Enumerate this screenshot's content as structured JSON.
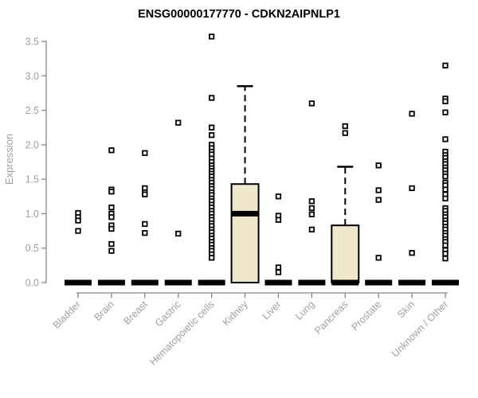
{
  "chart_data": {
    "type": "boxplot",
    "title": "ENSG00000177770 - CDKN2AIPNLP1",
    "ylabel": "Expression",
    "xlabel": "",
    "ylim": [
      0,
      3.5
    ],
    "ytick_labels": [
      "0.0",
      "0.5",
      "1.0",
      "1.5",
      "2.0",
      "2.5",
      "3.0",
      "3.5"
    ],
    "grid": false,
    "legend": "none",
    "categories": [
      "Bladder",
      "Brain",
      "Breast",
      "Gastric",
      "Hematopoietic cells",
      "Kidney",
      "Liver",
      "Lung",
      "Pancreas",
      "Prostate",
      "Skin",
      "Unknown / Other"
    ],
    "boxes": [
      {
        "category": "Bladder",
        "q1": 0,
        "median": 0,
        "q3": 0,
        "whisker_low": 0,
        "whisker_high": 0,
        "outliers": [
          1.01,
          0.95,
          0.9,
          0.75
        ]
      },
      {
        "category": "Brain",
        "q1": 0,
        "median": 0,
        "q3": 0,
        "whisker_low": 0,
        "whisker_high": 0,
        "outliers": [
          1.92,
          1.35,
          1.32,
          1.09,
          1.0,
          0.95,
          0.83,
          0.78,
          0.56,
          0.46
        ]
      },
      {
        "category": "Breast",
        "q1": 0,
        "median": 0,
        "q3": 0,
        "whisker_low": 0,
        "whisker_high": 0,
        "outliers": [
          1.88,
          1.37,
          1.31,
          1.28,
          0.85,
          0.72
        ]
      },
      {
        "category": "Gastric",
        "q1": 0,
        "median": 0,
        "q3": 0,
        "whisker_low": 0,
        "whisker_high": 0,
        "outliers": [
          2.32,
          0.71
        ]
      },
      {
        "category": "Hematopoietic cells",
        "q1": 0,
        "median": 0,
        "q3": 0,
        "whisker_low": 0,
        "whisker_high": 0,
        "outliers": [
          3.57,
          2.68,
          2.25,
          2.14,
          2.0,
          1.95,
          1.9,
          1.86,
          1.8,
          1.75,
          1.7,
          1.66,
          1.62,
          1.58,
          1.54,
          1.49,
          1.45,
          1.4,
          1.36,
          1.31,
          1.27,
          1.22,
          1.18,
          1.13,
          1.09,
          1.04,
          1.0,
          0.95,
          0.91,
          0.86,
          0.82,
          0.77,
          0.73,
          0.68,
          0.64,
          0.59,
          0.55,
          0.5,
          0.46,
          0.41,
          0.36
        ]
      },
      {
        "category": "Kidney",
        "q1": 0,
        "median": 1.0,
        "q3": 1.43,
        "whisker_low": 0,
        "whisker_high": 2.85,
        "outliers": []
      },
      {
        "category": "Liver",
        "q1": 0,
        "median": 0,
        "q3": 0,
        "whisker_low": 0,
        "whisker_high": 0,
        "outliers": [
          1.25,
          0.97,
          0.91,
          0.22,
          0.15
        ]
      },
      {
        "category": "Lung",
        "q1": 0,
        "median": 0,
        "q3": 0,
        "whisker_low": 0,
        "whisker_high": 0,
        "outliers": [
          2.6,
          1.18,
          1.08,
          0.99,
          0.77
        ]
      },
      {
        "category": "Pancreas",
        "q1": 0,
        "median": 0,
        "q3": 0.83,
        "whisker_low": 0,
        "whisker_high": 1.68,
        "outliers": [
          2.27,
          2.17
        ]
      },
      {
        "category": "Prostate",
        "q1": 0,
        "median": 0,
        "q3": 0,
        "whisker_low": 0,
        "whisker_high": 0,
        "outliers": [
          1.7,
          1.34,
          1.2,
          0.36
        ]
      },
      {
        "category": "Skin",
        "q1": 0,
        "median": 0,
        "q3": 0,
        "whisker_low": 0,
        "whisker_high": 0,
        "outliers": [
          2.45,
          1.37,
          0.43
        ]
      },
      {
        "category": "Unknown / Other",
        "q1": 0,
        "median": 0,
        "q3": 0,
        "whisker_low": 0,
        "whisker_high": 0,
        "outliers": [
          3.15,
          2.67,
          2.63,
          2.47,
          2.08,
          1.9,
          1.85,
          1.81,
          1.76,
          1.72,
          1.67,
          1.63,
          1.58,
          1.54,
          1.45,
          1.41,
          1.35,
          1.28,
          1.22,
          1.08,
          1.04,
          0.99,
          0.95,
          0.9,
          0.86,
          0.81,
          0.77,
          0.72,
          0.68,
          0.63,
          0.59,
          0.54,
          0.47,
          0.42,
          0.35
        ]
      }
    ]
  },
  "style": {
    "box_fill": "#f0e8cd",
    "box_stroke": "#000000",
    "median_color": "#000000",
    "marker_shape": "open-square",
    "marker_color": "#000000",
    "axis_color": "#888888",
    "label_color": "#a0a0a0",
    "title_color": "#000000",
    "background": "#ffffff"
  }
}
